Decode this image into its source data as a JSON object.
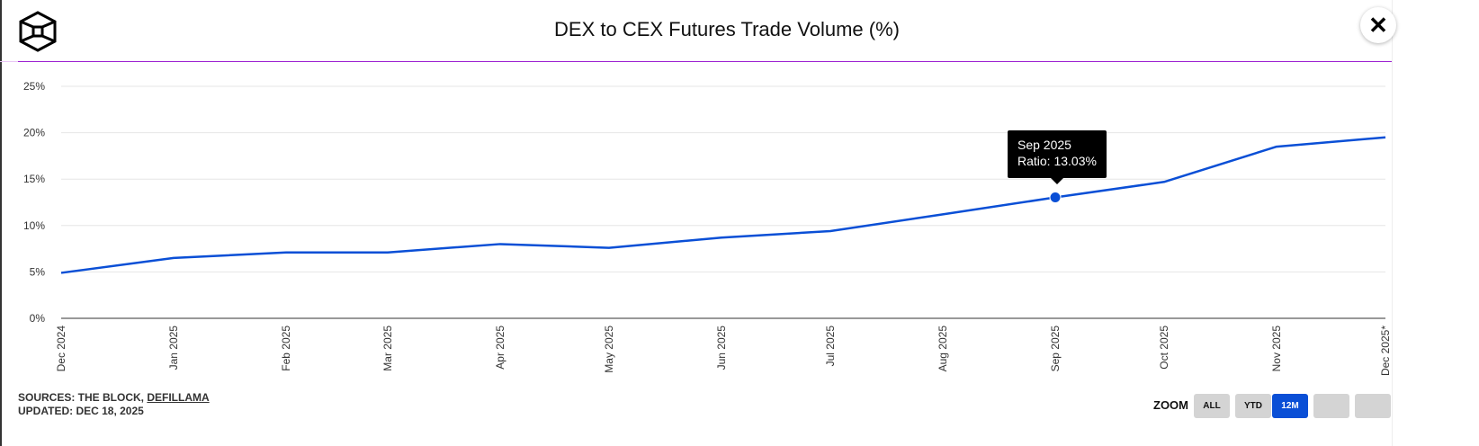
{
  "header": {
    "title": "DEX to CEX Futures Trade Volume (%)",
    "close_label": "✕",
    "logo": "The Block cube logo"
  },
  "chart_data": {
    "type": "line",
    "title": "DEX to CEX Futures Trade Volume (%)",
    "categories": [
      "Dec 2024",
      "Jan 2025",
      "Feb 2025",
      "Mar 2025",
      "Apr 2025",
      "May 2025",
      "Jun 2025",
      "Jul 2025",
      "Aug 2025",
      "Sep 2025",
      "Oct 2025",
      "Nov 2025",
      "Dec 2025*"
    ],
    "dates": [
      "2024-12-01",
      "2025-01-01",
      "2025-02-01",
      "2025-03-01",
      "2025-04-01",
      "2025-05-01",
      "2025-06-01",
      "2025-07-01",
      "2025-08-01",
      "2025-09-01",
      "2025-10-01",
      "2025-11-01",
      "2025-12-01"
    ],
    "series": [
      {
        "name": "Ratio",
        "values": [
          4.9,
          6.5,
          7.1,
          7.1,
          8.0,
          7.6,
          8.7,
          9.4,
          11.2,
          13.03,
          14.7,
          18.5,
          19.5
        ]
      }
    ],
    "yticks": [
      "0%",
      "5%",
      "10%",
      "15%",
      "20%",
      "25%"
    ],
    "ylim": [
      0,
      25
    ],
    "grid": true,
    "line_color": "#0a4fd6",
    "tooltip": {
      "title": "Sep 2025",
      "text": "Ratio: 13.03%",
      "index": 9
    }
  },
  "footer": {
    "sources_prefix": "SOURCES: THE BLOCK, ",
    "sources_link": "DEFILLAMA",
    "updated": "UPDATED: DEC 18, 2025"
  },
  "zoom": {
    "label": "ZOOM",
    "buttons": [
      {
        "label": "ALL"
      },
      {
        "label": "YTD"
      },
      {
        "label": "12M",
        "active": true
      },
      {
        "label": ""
      },
      {
        "label": ""
      }
    ]
  }
}
